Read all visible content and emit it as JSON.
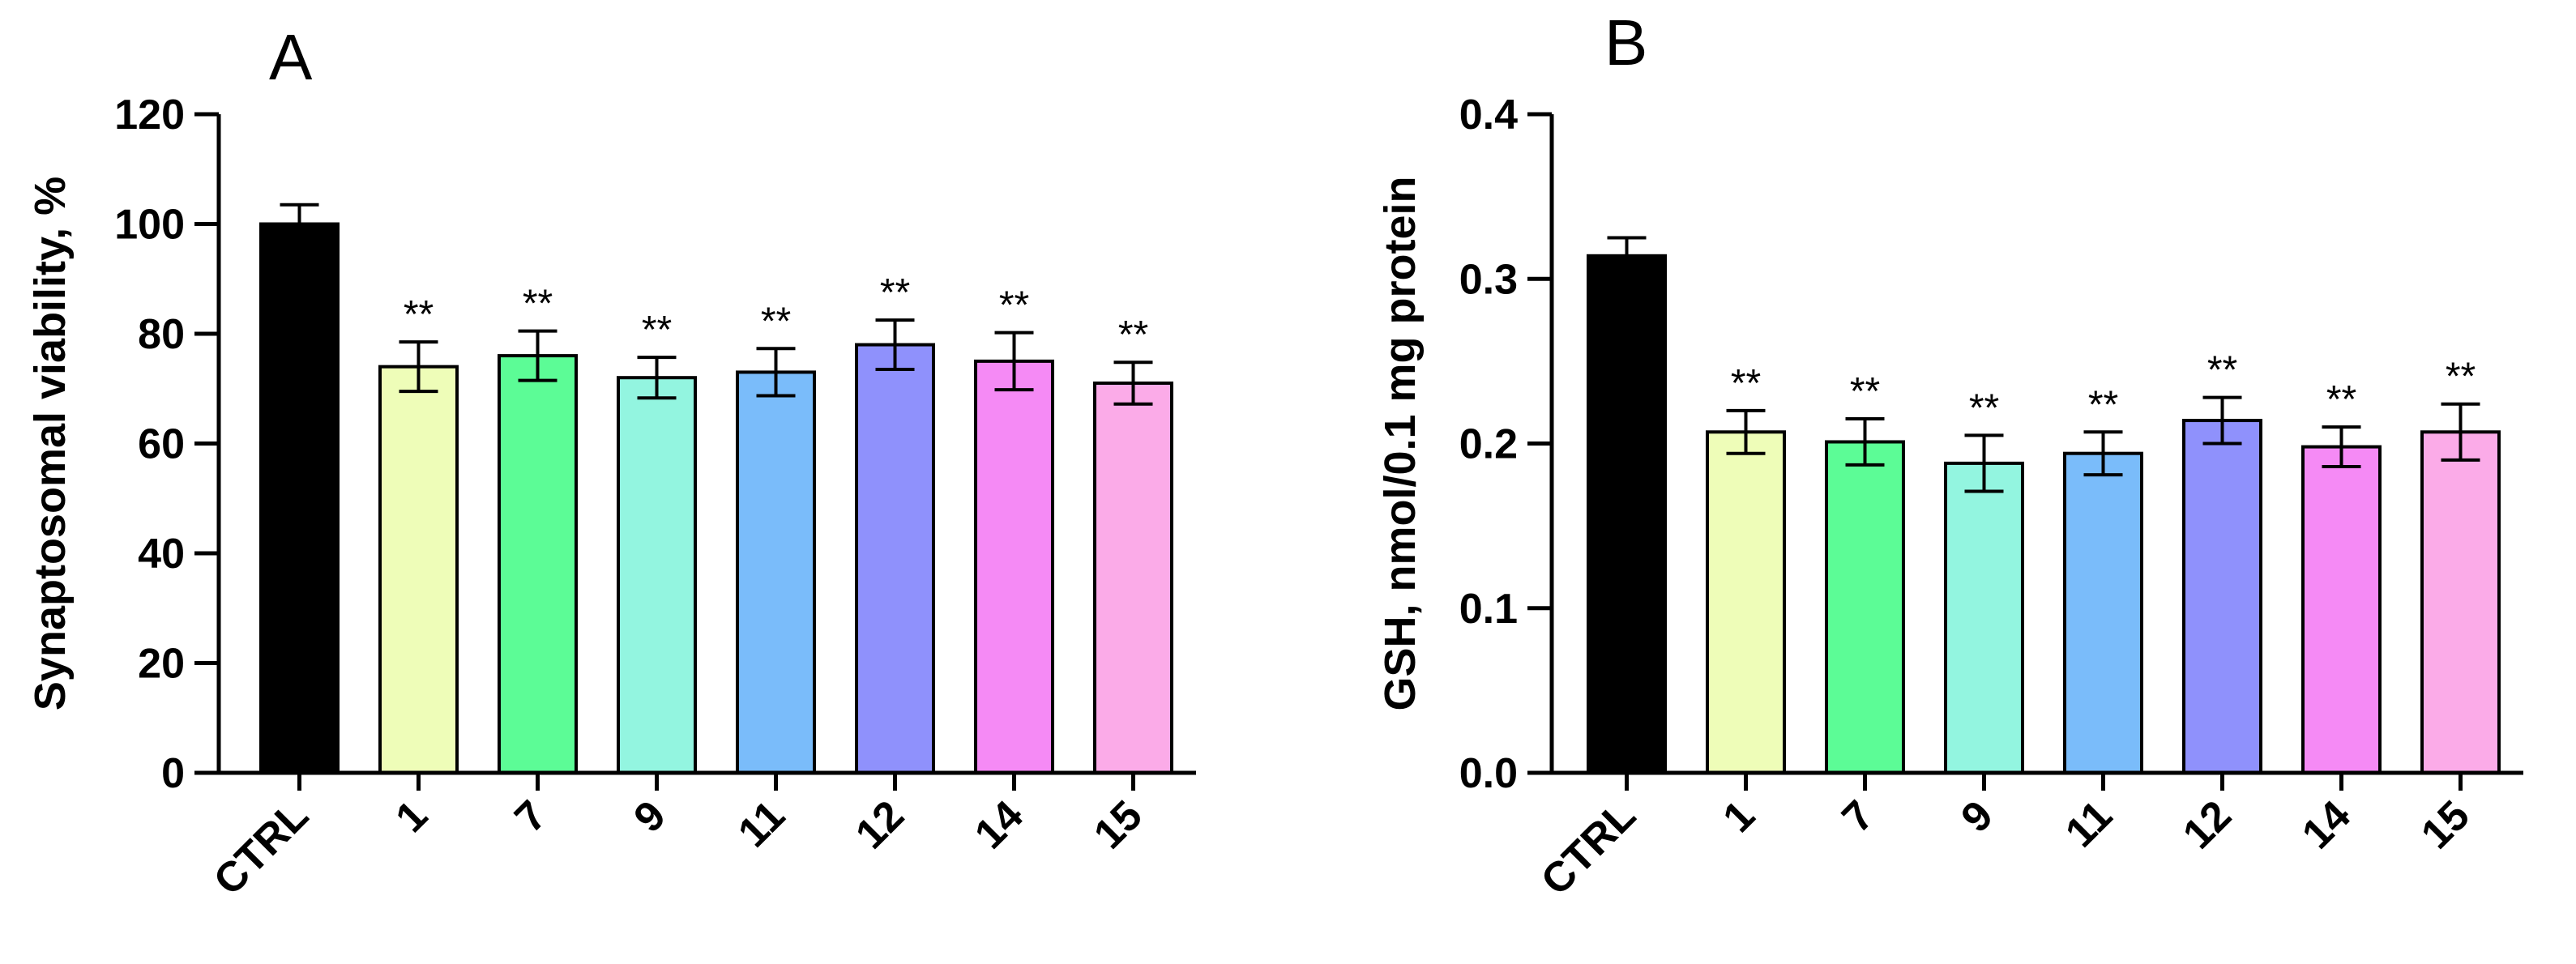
{
  "chart_data": [
    {
      "panel": "A",
      "type": "bar",
      "title": "",
      "xlabel": "",
      "ylabel": "Synaptosomal viability, %",
      "ylim": [
        0,
        120
      ],
      "yticks": [
        0,
        20,
        40,
        60,
        80,
        100,
        120
      ],
      "ytick_labels": [
        "0",
        "20",
        "40",
        "60",
        "80",
        "100",
        "120"
      ],
      "categories": [
        "CTRL",
        "1",
        "7",
        "9",
        "11",
        "12",
        "14",
        "15"
      ],
      "values": [
        100,
        74,
        76,
        72,
        73,
        78,
        75,
        71
      ],
      "errors": [
        3.5,
        4.5,
        4.5,
        3.7,
        4.3,
        4.5,
        5.2,
        3.8
      ],
      "annotations": [
        "",
        "**",
        "**",
        "**",
        "**",
        "**",
        "**",
        "**"
      ],
      "colors": [
        "#000000",
        "#eefdb8",
        "#5cfc96",
        "#93f5e0",
        "#7abcfa",
        "#8f91fc",
        "#f58af5",
        "#fbabe8"
      ],
      "grid": false
    },
    {
      "panel": "B",
      "type": "bar",
      "title": "",
      "xlabel": "",
      "ylabel": "GSH, nmol/0.1 mg protein",
      "ylim": [
        0,
        0.4
      ],
      "yticks": [
        0,
        0.1,
        0.2,
        0.3,
        0.4
      ],
      "ytick_labels": [
        "0.0",
        "0.1",
        "0.2",
        "0.3",
        "0.4"
      ],
      "categories": [
        "CTRL",
        "1",
        "7",
        "9",
        "11",
        "12",
        "14",
        "15"
      ],
      "values": [
        0.314,
        0.207,
        0.201,
        0.188,
        0.194,
        0.214,
        0.198,
        0.207
      ],
      "errors": [
        0.011,
        0.013,
        0.014,
        0.017,
        0.013,
        0.014,
        0.012,
        0.017
      ],
      "annotations": [
        "",
        "**",
        "**",
        "**",
        "**",
        "**",
        "**",
        "**"
      ],
      "colors": [
        "#000000",
        "#eefdb8",
        "#5cfc96",
        "#93f5e0",
        "#7abcfa",
        "#8f91fc",
        "#f58af5",
        "#fbabe8"
      ],
      "grid": false
    }
  ]
}
